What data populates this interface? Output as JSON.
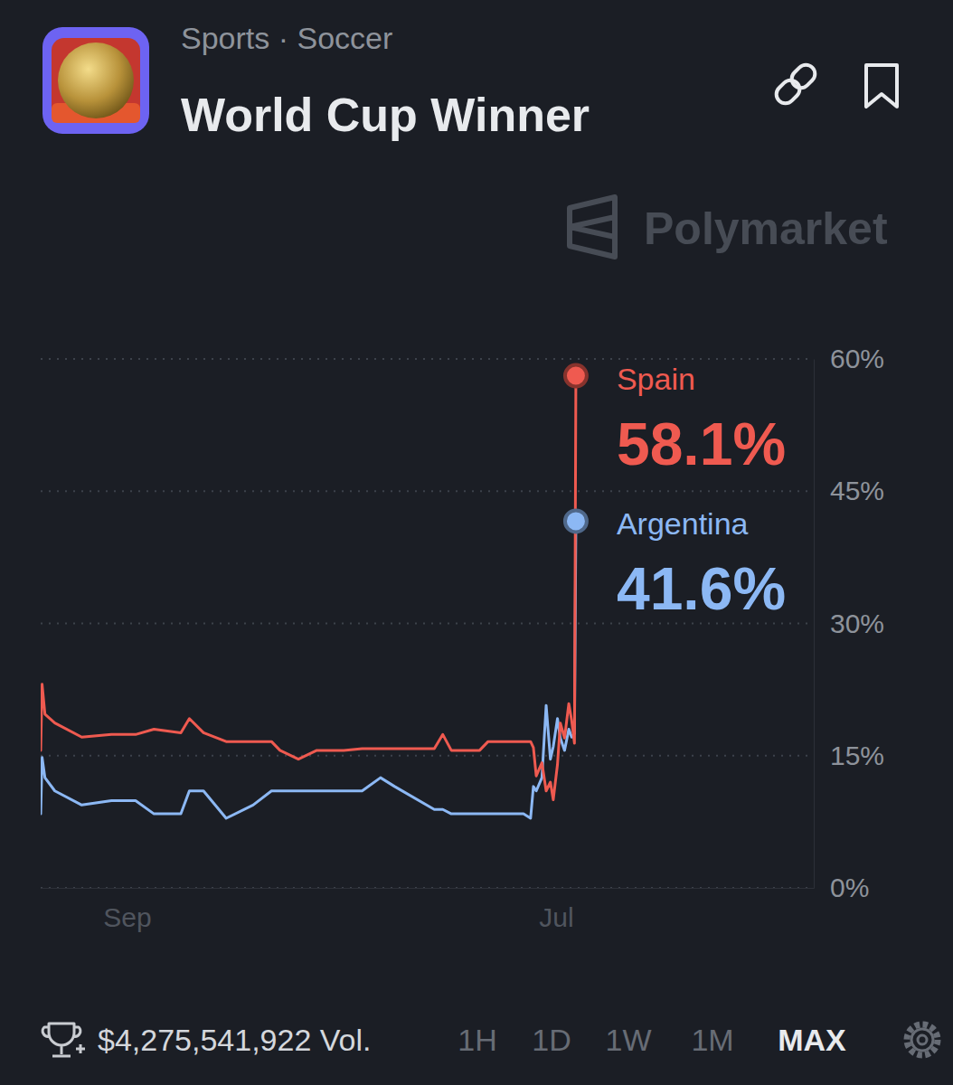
{
  "chart_data": {
    "type": "line",
    "subtitle": "Sports · Soccer",
    "title": "World Cup Winner",
    "watermark": "Polymarket",
    "volume_label": "$4,275,541,922 Vol.",
    "range_buttons": [
      "1H",
      "1D",
      "1W",
      "1M",
      "MAX"
    ],
    "active_range": "MAX",
    "x": [
      0,
      1,
      3,
      10,
      29,
      50,
      67,
      80,
      99,
      105,
      115,
      131,
      150,
      163,
      169,
      182,
      195,
      214,
      227,
      240,
      250,
      278,
      284,
      290,
      310,
      316,
      330,
      341,
      346,
      348,
      350,
      354,
      357,
      360,
      362,
      365,
      367,
      370,
      373,
      375,
      377,
      378
    ],
    "xlim": [
      0,
      546
    ],
    "xticks": [
      {
        "value": 61,
        "label": "Sep"
      },
      {
        "value": 364,
        "label": "Jul"
      }
    ],
    "ylim": [
      0,
      60
    ],
    "yticks": [
      {
        "value": 0,
        "label": "0%"
      },
      {
        "value": 15,
        "label": "15%"
      },
      {
        "value": 30,
        "label": "30%"
      },
      {
        "value": 45,
        "label": "45%"
      },
      {
        "value": 60,
        "label": "60%"
      }
    ],
    "grid": true,
    "series": [
      {
        "name": "Spain",
        "color": "#ef5a50",
        "values": [
          15.6,
          23.1,
          19.7,
          18.7,
          17.1,
          17.4,
          17.4,
          18.0,
          17.6,
          19.2,
          17.6,
          16.6,
          16.6,
          16.6,
          15.6,
          14.6,
          15.6,
          15.6,
          15.8,
          15.8,
          15.8,
          15.8,
          17.4,
          15.6,
          15.6,
          16.6,
          16.6,
          16.6,
          16.6,
          15.9,
          12.7,
          14.2,
          11.0,
          12.0,
          10.0,
          14.0,
          18.7,
          17.0,
          20.9,
          19.0,
          16.4,
          58.1
        ],
        "value_labels": [
          null,
          null,
          null,
          null,
          null,
          null,
          null,
          null,
          null,
          null,
          null,
          null,
          null,
          null,
          null,
          null,
          null,
          null,
          null,
          null,
          null,
          null,
          null,
          null,
          null,
          null,
          null,
          null,
          null,
          null,
          null,
          null,
          null,
          null,
          null,
          null,
          null,
          null,
          null,
          null,
          null,
          "58.1%"
        ]
      },
      {
        "name": "Argentina",
        "color": "#8cb8f4",
        "values": [
          8.4,
          14.8,
          12.5,
          11.0,
          9.4,
          9.9,
          9.9,
          8.4,
          8.4,
          11.0,
          11.0,
          7.9,
          9.4,
          11.0,
          11.0,
          11.0,
          11.0,
          11.0,
          11.0,
          12.5,
          11.5,
          8.9,
          8.9,
          8.4,
          8.4,
          8.4,
          8.4,
          8.4,
          7.9,
          11.5,
          11.0,
          12.5,
          20.7,
          14.6,
          16.0,
          19.2,
          17.0,
          15.6,
          18.0,
          17.1,
          17.5,
          41.6
        ],
        "value_labels": [
          null,
          null,
          null,
          null,
          null,
          null,
          null,
          null,
          null,
          null,
          null,
          null,
          null,
          null,
          null,
          null,
          null,
          null,
          null,
          null,
          null,
          null,
          null,
          null,
          null,
          null,
          null,
          null,
          null,
          null,
          null,
          null,
          null,
          null,
          null,
          null,
          null,
          null,
          null,
          null,
          null,
          "41.6%"
        ]
      }
    ]
  }
}
